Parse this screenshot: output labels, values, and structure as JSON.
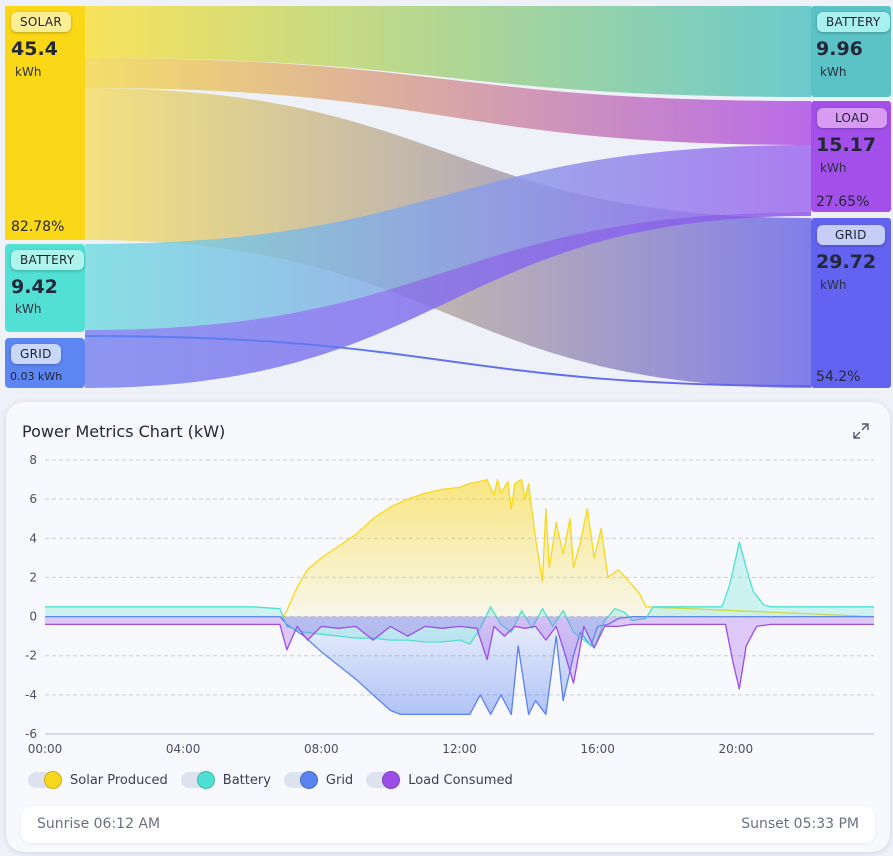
{
  "colors": {
    "solar": "#f9d71c",
    "battery": "#4ee0d2",
    "grid": "#5b82f0",
    "load": "#9b4de8",
    "grid_out": "#6563f0"
  },
  "sankey": {
    "sources": {
      "solar": {
        "label": "SOLAR",
        "value": "45.4",
        "unit": "kWh",
        "percent": "82.78%"
      },
      "battery": {
        "label": "BATTERY",
        "value": "9.42",
        "unit": "kWh"
      },
      "grid": {
        "label": "GRID",
        "value": "0.03",
        "unit": "kWh"
      }
    },
    "targets": {
      "battery": {
        "label": "BATTERY",
        "value": "9.96",
        "unit": "kWh"
      },
      "load": {
        "label": "LOAD",
        "value": "15.17",
        "unit": "kWh",
        "percent": "27.65%"
      },
      "grid": {
        "label": "GRID",
        "value": "29.72",
        "unit": "kWh",
        "percent": "54.2%"
      }
    }
  },
  "card": {
    "title": "Power Metrics Chart (kW)",
    "expand_icon": "expand-icon",
    "sunrise": "Sunrise 06:12 AM",
    "sunset": "Sunset 05:33 PM"
  },
  "legend": [
    {
      "label": "Solar Produced",
      "color": "#f9d71c"
    },
    {
      "label": "Battery",
      "color": "#4ee0d2"
    },
    {
      "label": "Grid",
      "color": "#5b82f0"
    },
    {
      "label": "Load Consumed",
      "color": "#9b4de8"
    }
  ],
  "chart_data": {
    "type": "area",
    "title": "Power Metrics Chart (kW)",
    "xlabel": "",
    "ylabel": "",
    "ylim": [
      -6,
      8
    ],
    "xlim": [
      0,
      24
    ],
    "yticks": [
      -6,
      -4,
      -2,
      0,
      2,
      4,
      6,
      8
    ],
    "xticks": [
      "00:00",
      "04:00",
      "08:00",
      "12:00",
      "16:00",
      "20:00"
    ],
    "xtick_hours": [
      0,
      4,
      8,
      12,
      16,
      20
    ],
    "grid": true,
    "legend_position": "bottom-left",
    "series": [
      {
        "name": "Solar Produced",
        "x": [
          0,
          6.9,
          7.0,
          7.3,
          7.6,
          8.0,
          8.5,
          9.0,
          9.5,
          10.0,
          10.5,
          11.0,
          11.5,
          12.0,
          12.3,
          12.6,
          12.8,
          13.0,
          13.1,
          13.2,
          13.4,
          13.5,
          13.6,
          13.7,
          13.8,
          13.9,
          14.0,
          14.2,
          14.4,
          14.5,
          14.6,
          14.8,
          15.0,
          15.2,
          15.3,
          15.5,
          15.7,
          15.9,
          16.1,
          16.3,
          16.6,
          16.9,
          17.2,
          17.4,
          24
        ],
        "y": [
          0,
          0,
          0.3,
          1.5,
          2.4,
          3.0,
          3.6,
          4.2,
          5.0,
          5.6,
          6.0,
          6.3,
          6.5,
          6.6,
          6.8,
          6.9,
          7.0,
          6.2,
          7.0,
          6.3,
          6.9,
          5.5,
          6.8,
          6.9,
          7.0,
          6.0,
          6.8,
          4.0,
          1.8,
          5.5,
          2.5,
          4.8,
          3.2,
          5.0,
          2.5,
          3.8,
          5.5,
          3.0,
          4.5,
          2.0,
          2.4,
          1.8,
          1.2,
          0.5,
          0
        ]
      },
      {
        "name": "Battery",
        "x": [
          0,
          1,
          2,
          3,
          4,
          5,
          6,
          6.8,
          7.0,
          7.5,
          8.0,
          8.5,
          9.0,
          9.5,
          10.0,
          10.5,
          11.0,
          11.5,
          12.0,
          12.3,
          12.6,
          12.9,
          13.2,
          13.5,
          13.8,
          14.1,
          14.4,
          14.7,
          15.0,
          15.3,
          15.6,
          15.9,
          16.2,
          16.5,
          16.8,
          17.0,
          17.4,
          17.6,
          18.0,
          19.0,
          19.6,
          19.8,
          19.9,
          20.1,
          20.3,
          20.5,
          20.8,
          21.0,
          22.0,
          23.0,
          24
        ],
        "y": [
          0.5,
          0.5,
          0.5,
          0.5,
          0.5,
          0.5,
          0.5,
          0.4,
          -0.5,
          -0.8,
          -0.9,
          -1.0,
          -1.1,
          -1.1,
          -1.2,
          -1.2,
          -1.3,
          -1.3,
          -1.2,
          -1.4,
          -0.6,
          0.5,
          -0.4,
          -0.8,
          0.3,
          -0.6,
          0.4,
          -0.5,
          0.3,
          -0.8,
          -1.2,
          -1.6,
          -0.2,
          0.4,
          0.2,
          -0.2,
          -0.1,
          0.5,
          0.5,
          0.5,
          0.5,
          1.5,
          2.2,
          3.8,
          2.5,
          1.3,
          0.6,
          0.5,
          0.5,
          0.5,
          0.5
        ]
      },
      {
        "name": "Grid",
        "x": [
          0,
          6.8,
          7.0,
          7.5,
          8.0,
          8.5,
          9.0,
          9.5,
          10.0,
          10.3,
          10.6,
          11.0,
          11.5,
          12.0,
          12.3,
          12.6,
          12.9,
          13.2,
          13.5,
          13.7,
          14.0,
          14.2,
          14.5,
          14.8,
          15.0,
          15.3,
          15.5,
          15.8,
          16.0,
          16.3,
          16.6,
          17.0,
          18.0,
          24
        ],
        "y": [
          0,
          0,
          -0.4,
          -1.0,
          -1.8,
          -2.5,
          -3.2,
          -4.0,
          -4.8,
          -5.0,
          -5.0,
          -5.0,
          -5.0,
          -5.0,
          -5.0,
          -4.0,
          -5.0,
          -4.0,
          -5.0,
          -1.5,
          -5.0,
          -4.3,
          -5.0,
          -1.0,
          -4.3,
          -2.0,
          -0.8,
          -1.5,
          -0.5,
          -0.4,
          -0.1,
          0,
          0,
          0
        ]
      },
      {
        "name": "Load Consumed",
        "x": [
          0,
          1,
          2,
          3,
          4,
          5,
          6,
          6.8,
          7.0,
          7.3,
          7.6,
          8.0,
          8.5,
          9.0,
          9.5,
          10.0,
          10.5,
          11.0,
          11.5,
          12.0,
          12.5,
          12.8,
          13.0,
          13.3,
          13.6,
          13.9,
          14.2,
          14.5,
          14.8,
          15.0,
          15.3,
          15.6,
          15.9,
          16.2,
          16.6,
          17.0,
          18.0,
          19.0,
          19.7,
          19.9,
          20.1,
          20.3,
          20.6,
          21.0,
          22.0,
          23.0,
          24
        ],
        "y": [
          -0.4,
          -0.4,
          -0.4,
          -0.4,
          -0.4,
          -0.4,
          -0.4,
          -0.4,
          -1.7,
          -0.5,
          -1.2,
          -0.5,
          -0.6,
          -0.5,
          -1.2,
          -0.5,
          -1.0,
          -0.5,
          -0.6,
          -0.5,
          -0.6,
          -2.2,
          -0.5,
          -1.0,
          -0.5,
          -0.6,
          -0.5,
          -1.2,
          -0.5,
          -1.6,
          -3.4,
          -0.5,
          -1.6,
          -0.5,
          -0.5,
          -0.4,
          -0.4,
          -0.4,
          -0.4,
          -2.2,
          -3.7,
          -1.5,
          -0.5,
          -0.4,
          -0.4,
          -0.4,
          -0.4
        ]
      }
    ]
  }
}
